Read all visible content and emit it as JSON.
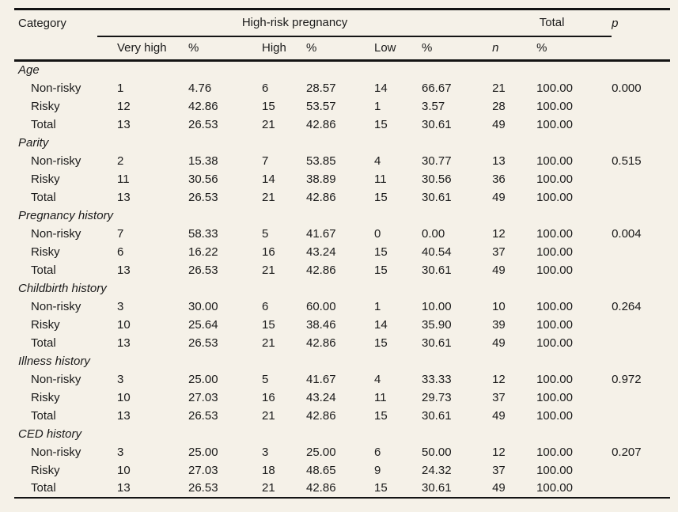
{
  "colors": {
    "background": "#f5f1e8",
    "rule": "#141414",
    "text": "#1a1a1a"
  },
  "header": {
    "category": "Category",
    "group_highrisk": "High-risk pregnancy",
    "group_total": "Total",
    "p": "p",
    "subheaders": [
      "Very high",
      "%",
      "High",
      "%",
      "Low",
      "%",
      "n",
      "%"
    ]
  },
  "sections": [
    {
      "name": "Age",
      "rows": [
        {
          "label": "Non-risky",
          "values": [
            "1",
            "4.76",
            "6",
            "28.57",
            "14",
            "66.67",
            "21",
            "100.00"
          ],
          "p": "0.000"
        },
        {
          "label": "Risky",
          "values": [
            "12",
            "42.86",
            "15",
            "53.57",
            "1",
            "3.57",
            "28",
            "100.00"
          ],
          "p": ""
        },
        {
          "label": "Total",
          "values": [
            "13",
            "26.53",
            "21",
            "42.86",
            "15",
            "30.61",
            "49",
            "100.00"
          ],
          "p": ""
        }
      ]
    },
    {
      "name": "Parity",
      "rows": [
        {
          "label": "Non-risky",
          "values": [
            "2",
            "15.38",
            "7",
            "53.85",
            "4",
            "30.77",
            "13",
            "100.00"
          ],
          "p": "0.515"
        },
        {
          "label": "Risky",
          "values": [
            "11",
            "30.56",
            "14",
            "38.89",
            "11",
            "30.56",
            "36",
            "100.00"
          ],
          "p": ""
        },
        {
          "label": "Total",
          "values": [
            "13",
            "26.53",
            "21",
            "42.86",
            "15",
            "30.61",
            "49",
            "100.00"
          ],
          "p": ""
        }
      ]
    },
    {
      "name": "Pregnancy history",
      "rows": [
        {
          "label": "Non-risky",
          "values": [
            "7",
            "58.33",
            "5",
            "41.67",
            "0",
            "0.00",
            "12",
            "100.00"
          ],
          "p": "0.004"
        },
        {
          "label": "Risky",
          "values": [
            "6",
            "16.22",
            "16",
            "43.24",
            "15",
            "40.54",
            "37",
            "100.00"
          ],
          "p": ""
        },
        {
          "label": "Total",
          "values": [
            "13",
            "26.53",
            "21",
            "42.86",
            "15",
            "30.61",
            "49",
            "100.00"
          ],
          "p": ""
        }
      ]
    },
    {
      "name": "Childbirth history",
      "rows": [
        {
          "label": "Non-risky",
          "values": [
            "3",
            "30.00",
            "6",
            "60.00",
            "1",
            "10.00",
            "10",
            "100.00"
          ],
          "p": "0.264"
        },
        {
          "label": "Risky",
          "values": [
            "10",
            "25.64",
            "15",
            "38.46",
            "14",
            "35.90",
            "39",
            "100.00"
          ],
          "p": ""
        },
        {
          "label": "Total",
          "values": [
            "13",
            "26.53",
            "21",
            "42.86",
            "15",
            "30.61",
            "49",
            "100.00"
          ],
          "p": ""
        }
      ]
    },
    {
      "name": "Illness history",
      "rows": [
        {
          "label": "Non-risky",
          "values": [
            "3",
            "25.00",
            "5",
            "41.67",
            "4",
            "33.33",
            "12",
            "100.00"
          ],
          "p": "0.972"
        },
        {
          "label": "Risky",
          "values": [
            "10",
            "27.03",
            "16",
            "43.24",
            "11",
            "29.73",
            "37",
            "100.00"
          ],
          "p": ""
        },
        {
          "label": "Total",
          "values": [
            "13",
            "26.53",
            "21",
            "42.86",
            "15",
            "30.61",
            "49",
            "100.00"
          ],
          "p": ""
        }
      ]
    },
    {
      "name": "CED history",
      "rows": [
        {
          "label": "Non-risky",
          "values": [
            "3",
            "25.00",
            "3",
            "25.00",
            "6",
            "50.00",
            "12",
            "100.00"
          ],
          "p": "0.207"
        },
        {
          "label": "Risky",
          "values": [
            "10",
            "27.03",
            "18",
            "48.65",
            "9",
            "24.32",
            "37",
            "100.00"
          ],
          "p": ""
        },
        {
          "label": "Total",
          "values": [
            "13",
            "26.53",
            "21",
            "42.86",
            "15",
            "30.61",
            "49",
            "100.00"
          ],
          "p": ""
        }
      ]
    }
  ]
}
